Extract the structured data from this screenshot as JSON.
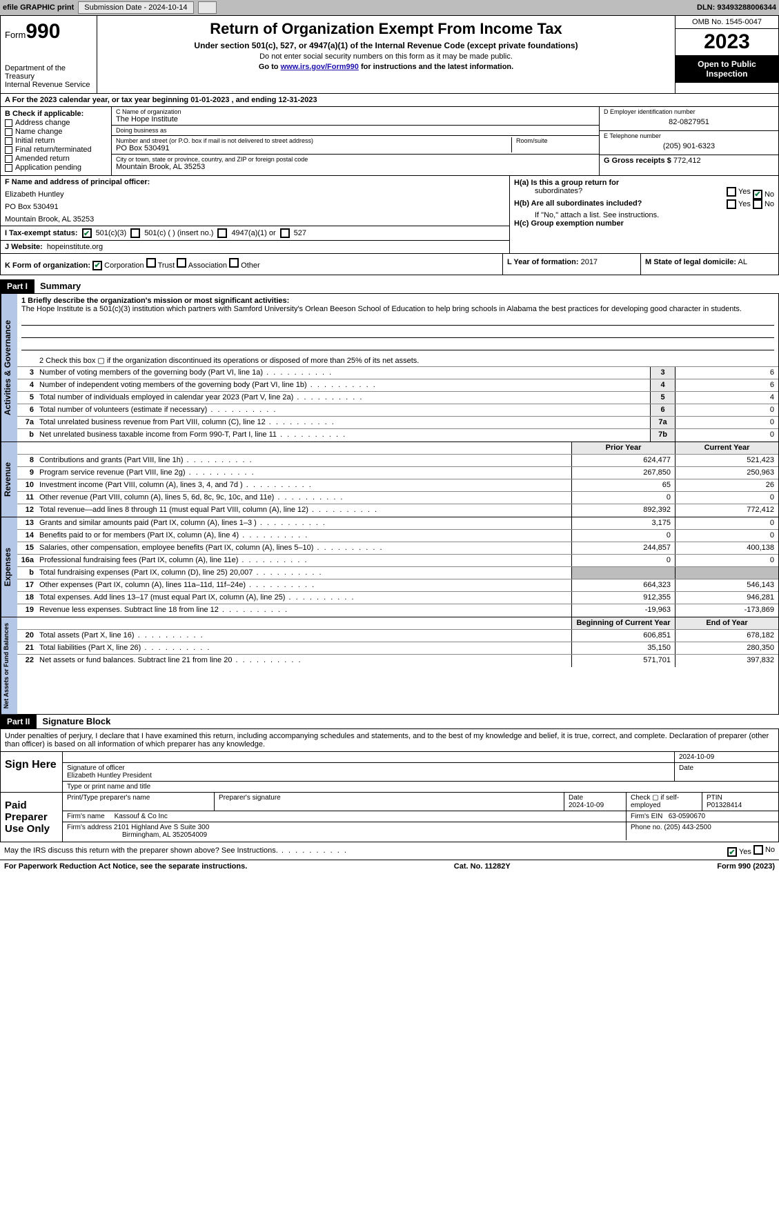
{
  "topbar": {
    "efile": "efile GRAPHIC print",
    "submission_label": "Submission Date - 2024-10-14",
    "dln": "DLN: 93493288006344"
  },
  "header": {
    "form_prefix": "Form",
    "form_number": "990",
    "dept": "Department of the Treasury",
    "irs": "Internal Revenue Service",
    "title": "Return of Organization Exempt From Income Tax",
    "sub": "Under section 501(c), 527, or 4947(a)(1) of the Internal Revenue Code (except private foundations)",
    "note1": "Do not enter social security numbers on this form as it may be made public.",
    "note2_pre": "Go to ",
    "note2_link": "www.irs.gov/Form990",
    "note2_post": " for instructions and the latest information.",
    "omb": "OMB No. 1545-0047",
    "year": "2023",
    "inspection": "Open to Public Inspection"
  },
  "line_a": "A  For the 2023 calendar year, or tax year beginning 01-01-2023   , and ending 12-31-2023",
  "box_b": {
    "header": "B Check if applicable:",
    "items": [
      "Address change",
      "Name change",
      "Initial return",
      "Final return/terminated",
      "Amended return",
      "Application pending"
    ]
  },
  "box_c": {
    "name_lbl": "C Name of organization",
    "name": "The Hope Institute",
    "dba_lbl": "Doing business as",
    "dba": "",
    "street_lbl": "Number and street (or P.O. box if mail is not delivered to street address)",
    "street": "PO Box 530491",
    "room_lbl": "Room/suite",
    "room": "",
    "city_lbl": "City or town, state or province, country, and ZIP or foreign postal code",
    "city": "Mountain Brook, AL  35253"
  },
  "box_d": {
    "ein_lbl": "D Employer identification number",
    "ein": "82-0827951",
    "phone_lbl": "E Telephone number",
    "phone": "(205) 901-6323",
    "gross_lbl": "G Gross receipts $",
    "gross": "772,412"
  },
  "box_f": {
    "lbl": "F  Name and address of principal officer:",
    "name": "Elizabeth Huntley",
    "addr1": "PO Box 530491",
    "addr2": "Mountain Brook, AL  35253"
  },
  "box_h": {
    "ha": "H(a)  Is this a group return for",
    "ha2": "subordinates?",
    "hb": "H(b)  Are all subordinates included?",
    "hb_note": "If \"No,\" attach a list. See instructions.",
    "hc": "H(c)  Group exemption number"
  },
  "box_i": {
    "lbl": "I   Tax-exempt status:",
    "opt1": "501(c)(3)",
    "opt2": "501(c) (  ) (insert no.)",
    "opt3": "4947(a)(1) or",
    "opt4": "527"
  },
  "box_j": {
    "lbl": "J   Website:",
    "val": "hopeinstitute.org"
  },
  "box_k": {
    "lbl": "K Form of organization:",
    "opts": [
      "Corporation",
      "Trust",
      "Association",
      "Other"
    ]
  },
  "box_l": {
    "lbl": "L Year of formation:",
    "val": "2017"
  },
  "box_m": {
    "lbl": "M State of legal domicile:",
    "val": "AL"
  },
  "part1": {
    "hdr": "Part I",
    "title": "Summary"
  },
  "mission": {
    "q": "1   Briefly describe the organization's mission or most significant activities:",
    "text": "The Hope Institute is a 501(c)(3) institution which partners with Samford University's Orlean Beeson School of Education to help bring schools in Alabama the best practices for developing good character in students."
  },
  "line2": "2   Check this box  ▢  if the organization discontinued its operations or disposed of more than 25% of its net assets.",
  "gov_lines": [
    {
      "n": "3",
      "d": "Number of voting members of the governing body (Part VI, line 1a)",
      "box": "3",
      "v": "6"
    },
    {
      "n": "4",
      "d": "Number of independent voting members of the governing body (Part VI, line 1b)",
      "box": "4",
      "v": "6"
    },
    {
      "n": "5",
      "d": "Total number of individuals employed in calendar year 2023 (Part V, line 2a)",
      "box": "5",
      "v": "4"
    },
    {
      "n": "6",
      "d": "Total number of volunteers (estimate if necessary)",
      "box": "6",
      "v": "0"
    },
    {
      "n": "7a",
      "d": "Total unrelated business revenue from Part VIII, column (C), line 12",
      "box": "7a",
      "v": "0"
    },
    {
      "n": "b",
      "d": "Net unrelated business taxable income from Form 990-T, Part I, line 11",
      "box": "7b",
      "v": "0"
    }
  ],
  "rev_hdr": {
    "prior": "Prior Year",
    "curr": "Current Year"
  },
  "revenue": [
    {
      "n": "8",
      "d": "Contributions and grants (Part VIII, line 1h)",
      "p": "624,477",
      "c": "521,423"
    },
    {
      "n": "9",
      "d": "Program service revenue (Part VIII, line 2g)",
      "p": "267,850",
      "c": "250,963"
    },
    {
      "n": "10",
      "d": "Investment income (Part VIII, column (A), lines 3, 4, and 7d )",
      "p": "65",
      "c": "26"
    },
    {
      "n": "11",
      "d": "Other revenue (Part VIII, column (A), lines 5, 6d, 8c, 9c, 10c, and 11e)",
      "p": "0",
      "c": "0"
    },
    {
      "n": "12",
      "d": "Total revenue—add lines 8 through 11 (must equal Part VIII, column (A), line 12)",
      "p": "892,392",
      "c": "772,412"
    }
  ],
  "expenses": [
    {
      "n": "13",
      "d": "Grants and similar amounts paid (Part IX, column (A), lines 1–3 )",
      "p": "3,175",
      "c": "0"
    },
    {
      "n": "14",
      "d": "Benefits paid to or for members (Part IX, column (A), line 4)",
      "p": "0",
      "c": "0"
    },
    {
      "n": "15",
      "d": "Salaries, other compensation, employee benefits (Part IX, column (A), lines 5–10)",
      "p": "244,857",
      "c": "400,138"
    },
    {
      "n": "16a",
      "d": "Professional fundraising fees (Part IX, column (A), line 11e)",
      "p": "0",
      "c": "0"
    },
    {
      "n": "b",
      "d": "Total fundraising expenses (Part IX, column (D), line 25) 20,007",
      "p": "",
      "c": "",
      "shade": true
    },
    {
      "n": "17",
      "d": "Other expenses (Part IX, column (A), lines 11a–11d, 11f–24e)",
      "p": "664,323",
      "c": "546,143"
    },
    {
      "n": "18",
      "d": "Total expenses. Add lines 13–17 (must equal Part IX, column (A), line 25)",
      "p": "912,355",
      "c": "946,281"
    },
    {
      "n": "19",
      "d": "Revenue less expenses. Subtract line 18 from line 12",
      "p": "-19,963",
      "c": "-173,869"
    }
  ],
  "net_hdr": {
    "prior": "Beginning of Current Year",
    "curr": "End of Year"
  },
  "netassets": [
    {
      "n": "20",
      "d": "Total assets (Part X, line 16)",
      "p": "606,851",
      "c": "678,182"
    },
    {
      "n": "21",
      "d": "Total liabilities (Part X, line 26)",
      "p": "35,150",
      "c": "280,350"
    },
    {
      "n": "22",
      "d": "Net assets or fund balances. Subtract line 21 from line 20",
      "p": "571,701",
      "c": "397,832"
    }
  ],
  "part2": {
    "hdr": "Part II",
    "title": "Signature Block"
  },
  "declare": "Under penalties of perjury, I declare that I have examined this return, including accompanying schedules and statements, and to the best of my knowledge and belief, it is true, correct, and complete. Declaration of preparer (other than officer) is based on all information of which preparer has any knowledge.",
  "sign": {
    "here": "Sign Here",
    "sig_date": "2024-10-09",
    "sig_lbl": "Signature of officer",
    "officer": "Elizabeth Huntley  President",
    "type_lbl": "Type or print name and title",
    "date_lbl": "Date"
  },
  "paid": {
    "lbl": "Paid Preparer Use Only",
    "name_lbl": "Print/Type preparer's name",
    "sig_lbl": "Preparer's signature",
    "date_lbl": "Date",
    "date": "2024-10-09",
    "check_lbl": "Check ▢ if self-employed",
    "ptin_lbl": "PTIN",
    "ptin": "P01328414",
    "firm_name_lbl": "Firm's name",
    "firm_name": "Kassouf & Co Inc",
    "firm_ein_lbl": "Firm's EIN",
    "firm_ein": "63-0590670",
    "firm_addr_lbl": "Firm's address",
    "firm_addr1": "2101 Highland Ave S Suite 300",
    "firm_addr2": "Birmingham, AL  352054009",
    "phone_lbl": "Phone no.",
    "phone": "(205) 443-2500"
  },
  "discuss": "May the IRS discuss this return with the preparer shown above? See Instructions.",
  "footer": {
    "left": "For Paperwork Reduction Act Notice, see the separate instructions.",
    "mid": "Cat. No. 11282Y",
    "right": "Form 990 (2023)"
  },
  "yes": "Yes",
  "no": "No"
}
